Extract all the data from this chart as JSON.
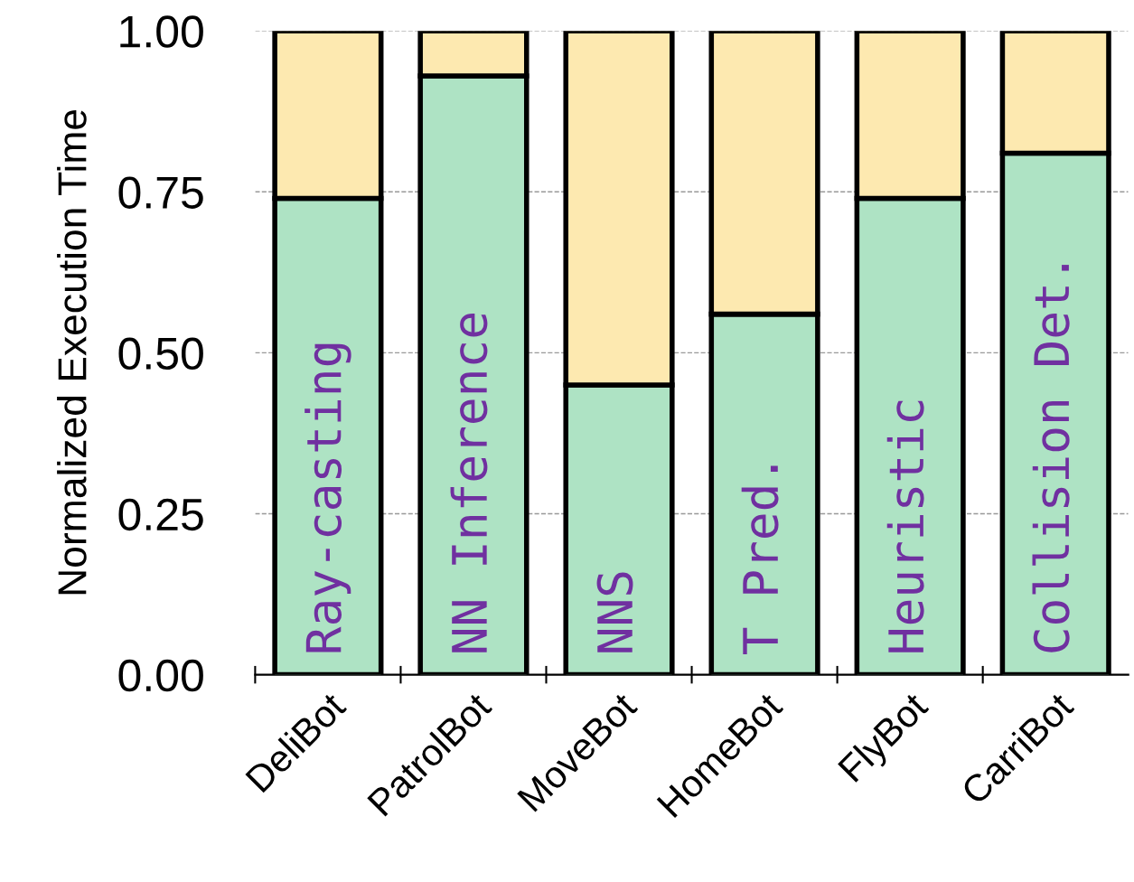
{
  "chart_data": {
    "type": "bar",
    "stacked": true,
    "ylabel": "Normalized Execution Time",
    "categories": [
      "DeliBot",
      "PatrolBot",
      "MoveBot",
      "HomeBot",
      "FlyBot",
      "CarriBot"
    ],
    "series": [
      {
        "color": "#aee3c4",
        "values": [
          0.74,
          0.93,
          0.45,
          0.56,
          0.74,
          0.81
        ]
      },
      {
        "color": "#fde9b0",
        "values": [
          0.26,
          0.07,
          0.55,
          0.44,
          0.26,
          0.19
        ]
      }
    ],
    "ylim": [
      0,
      1.0
    ],
    "yticks": [
      {
        "value": 0,
        "label": "0.00"
      },
      {
        "value": 0.25,
        "label": "0.25"
      },
      {
        "value": 0.5,
        "label": "0.50"
      },
      {
        "value": 0.75,
        "label": "0.75"
      },
      {
        "value": 1.0,
        "label": "1.00"
      }
    ],
    "grid": "y",
    "annotations": [
      "Ray-casting",
      "NN Inference",
      "NNS",
      "T Pred.",
      "Heuristic",
      "Collision Det."
    ]
  }
}
